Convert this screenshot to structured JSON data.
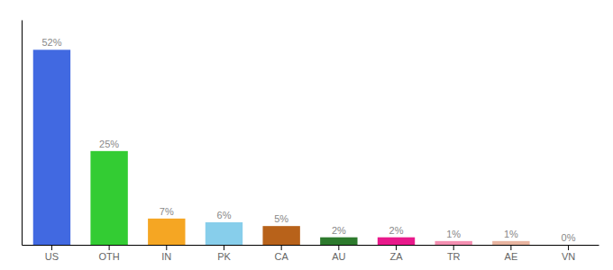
{
  "chart_data": {
    "type": "bar",
    "categories": [
      "US",
      "OTH",
      "IN",
      "PK",
      "CA",
      "AU",
      "ZA",
      "TR",
      "AE",
      "VN"
    ],
    "values": [
      52,
      25,
      7,
      6,
      5,
      2,
      2,
      1,
      1,
      0
    ],
    "value_labels": [
      "52%",
      "25%",
      "7%",
      "6%",
      "5%",
      "2%",
      "2%",
      "1%",
      "1%",
      "0%"
    ],
    "colors": [
      "#4169e1",
      "#33cc33",
      "#f5a623",
      "#87ceeb",
      "#b8621a",
      "#2d7a2d",
      "#e8198b",
      "#f48fb1",
      "#e8b4a0",
      "#dddddd"
    ],
    "ylim": [
      0,
      60
    ],
    "data_labels": true,
    "tick_labels": "x",
    "grid": false
  }
}
